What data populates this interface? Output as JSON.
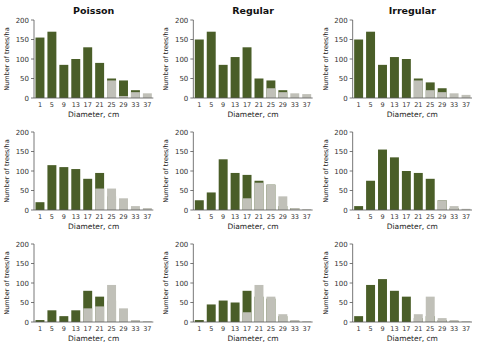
{
  "chart_data": [
    {
      "type": "bar",
      "title": "Poisson",
      "xlabel": "Diameter, cm",
      "ylabel": "Number of trees/ha",
      "categories": [
        "1",
        "5",
        "9",
        "13",
        "17",
        "21",
        "25",
        "29",
        "33",
        "37"
      ],
      "ylim": [
        0,
        200
      ],
      "yticks": [
        0,
        50,
        100,
        150,
        200
      ],
      "series": [
        {
          "color": "#4a5e28",
          "values": [
            155,
            170,
            85,
            100,
            130,
            90,
            50,
            45,
            20,
            0
          ]
        },
        {
          "color": "#c0c0b8",
          "values": [
            0,
            0,
            0,
            0,
            0,
            0,
            45,
            5,
            15,
            12
          ]
        }
      ]
    },
    {
      "type": "bar",
      "title": "Regular",
      "xlabel": "Diameter, cm",
      "ylabel": "Number of trees/ha",
      "categories": [
        "1",
        "5",
        "9",
        "13",
        "17",
        "21",
        "25",
        "29",
        "33",
        "37"
      ],
      "ylim": [
        0,
        200
      ],
      "yticks": [
        0,
        50,
        100,
        150,
        200
      ],
      "series": [
        {
          "color": "#4a5e28",
          "values": [
            150,
            170,
            85,
            105,
            130,
            50,
            45,
            20,
            0,
            0
          ]
        },
        {
          "color": "#c0c0b8",
          "values": [
            0,
            0,
            0,
            0,
            0,
            0,
            25,
            15,
            12,
            10
          ]
        }
      ]
    },
    {
      "type": "bar",
      "title": "Irregular",
      "xlabel": "Diameter, cm",
      "ylabel": "Number of trees/ha",
      "categories": [
        "1",
        "5",
        "9",
        "13",
        "17",
        "21",
        "25",
        "29",
        "33",
        "37"
      ],
      "ylim": [
        0,
        200
      ],
      "yticks": [
        0,
        50,
        100,
        150,
        200
      ],
      "series": [
        {
          "color": "#4a5e28",
          "values": [
            150,
            170,
            85,
            105,
            100,
            50,
            40,
            25,
            0,
            0
          ]
        },
        {
          "color": "#c0c0b8",
          "values": [
            0,
            0,
            0,
            0,
            0,
            45,
            20,
            15,
            12,
            8
          ]
        }
      ]
    },
    {
      "type": "bar",
      "xlabel": "Diameter, cm",
      "ylabel": "Number of trees/ha",
      "categories": [
        "1",
        "5",
        "9",
        "13",
        "17",
        "21",
        "25",
        "29",
        "33",
        "37"
      ],
      "ylim": [
        0,
        200
      ],
      "yticks": [
        0,
        50,
        100,
        150,
        200
      ],
      "series": [
        {
          "color": "#4a5e28",
          "values": [
            20,
            115,
            110,
            105,
            80,
            95,
            35,
            5,
            3,
            0
          ]
        },
        {
          "color": "#c0c0b8",
          "values": [
            0,
            0,
            0,
            0,
            0,
            55,
            55,
            30,
            10,
            5
          ]
        }
      ]
    },
    {
      "type": "bar",
      "xlabel": "Diameter, cm",
      "ylabel": "Number of trees/ha",
      "categories": [
        "1",
        "5",
        "9",
        "13",
        "17",
        "21",
        "25",
        "29",
        "33",
        "37"
      ],
      "ylim": [
        0,
        200
      ],
      "yticks": [
        0,
        50,
        100,
        150,
        200
      ],
      "series": [
        {
          "color": "#4a5e28",
          "values": [
            25,
            45,
            130,
            95,
            90,
            75,
            65,
            10,
            5,
            0
          ]
        },
        {
          "color": "#c0c0b8",
          "values": [
            0,
            0,
            0,
            0,
            30,
            70,
            65,
            35,
            5,
            2
          ]
        }
      ]
    },
    {
      "type": "bar",
      "xlabel": "Diameter, cm",
      "ylabel": "Number of trees/ha",
      "categories": [
        "1",
        "5",
        "9",
        "13",
        "17",
        "21",
        "25",
        "29",
        "33",
        "37"
      ],
      "ylim": [
        0,
        200
      ],
      "yticks": [
        0,
        50,
        100,
        150,
        200
      ],
      "series": [
        {
          "color": "#4a5e28",
          "values": [
            10,
            75,
            155,
            135,
            100,
            95,
            80,
            25,
            5,
            0
          ]
        },
        {
          "color": "#c0c0b8",
          "values": [
            0,
            0,
            0,
            0,
            0,
            0,
            0,
            25,
            10,
            3
          ]
        }
      ]
    },
    {
      "type": "bar",
      "xlabel": "Diameter, cm",
      "ylabel": "Number of trees/ha",
      "categories": [
        "1",
        "5",
        "9",
        "13",
        "17",
        "21",
        "25",
        "29",
        "33",
        "37"
      ],
      "ylim": [
        0,
        200
      ],
      "yticks": [
        0,
        50,
        100,
        150,
        200
      ],
      "series": [
        {
          "color": "#4a5e28",
          "values": [
            5,
            30,
            15,
            30,
            80,
            65,
            55,
            5,
            3,
            0
          ]
        },
        {
          "color": "#c0c0b8",
          "values": [
            0,
            0,
            0,
            0,
            35,
            40,
            95,
            35,
            5,
            2
          ]
        }
      ]
    },
    {
      "type": "bar",
      "xlabel": "Diameter, cm",
      "ylabel": "Number of trees/ha",
      "categories": [
        "1",
        "5",
        "9",
        "13",
        "17",
        "21",
        "25",
        "29",
        "33",
        "37"
      ],
      "ylim": [
        0,
        200
      ],
      "yticks": [
        0,
        50,
        100,
        150,
        200
      ],
      "series": [
        {
          "color": "#4a5e28",
          "values": [
            5,
            45,
            55,
            50,
            80,
            65,
            60,
            15,
            3,
            0
          ]
        },
        {
          "color": "#c0c0b8",
          "values": [
            0,
            0,
            0,
            0,
            25,
            95,
            65,
            20,
            5,
            2
          ]
        }
      ]
    },
    {
      "type": "bar",
      "xlabel": "Diameter, cm",
      "ylabel": "Number of trees/ha",
      "categories": [
        "1",
        "5",
        "9",
        "13",
        "17",
        "21",
        "25",
        "29",
        "33",
        "37"
      ],
      "ylim": [
        0,
        200
      ],
      "yticks": [
        0,
        50,
        100,
        150,
        200
      ],
      "series": [
        {
          "color": "#4a5e28",
          "values": [
            15,
            95,
            110,
            80,
            65,
            10,
            15,
            5,
            2,
            0
          ]
        },
        {
          "color": "#c0c0b8",
          "values": [
            0,
            0,
            0,
            0,
            0,
            20,
            65,
            10,
            5,
            2
          ]
        }
      ]
    }
  ]
}
